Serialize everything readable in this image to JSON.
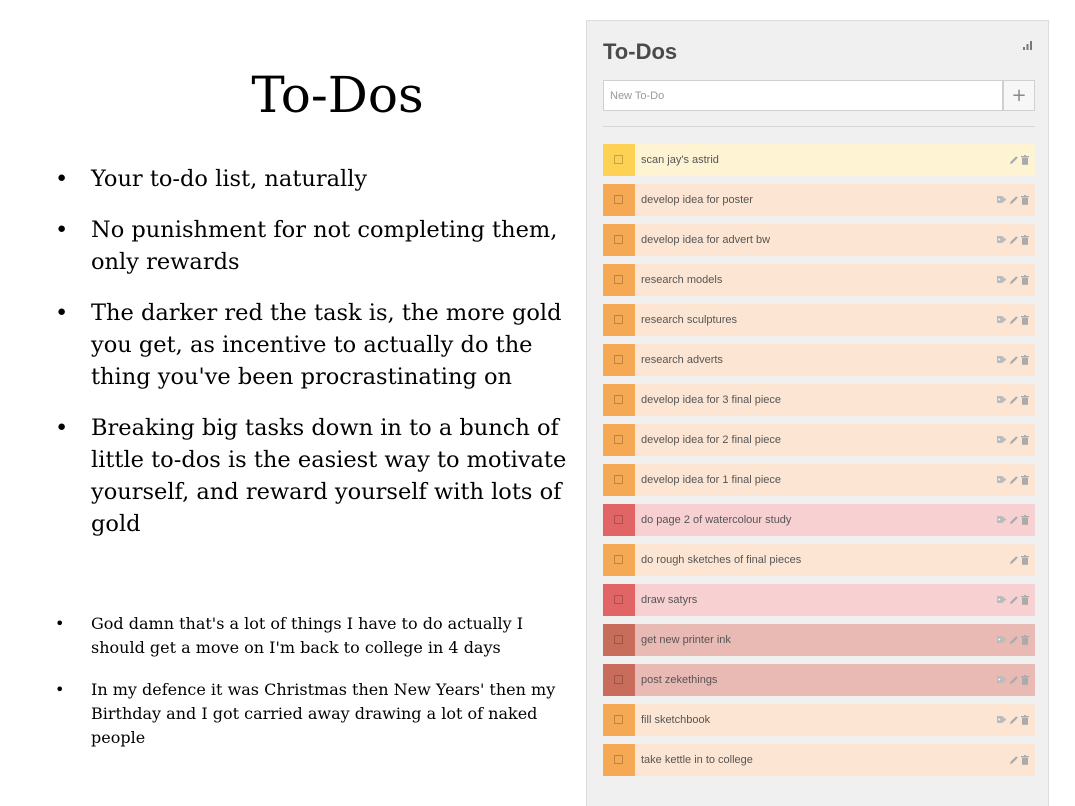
{
  "slide": {
    "title": "To-Dos",
    "bullets": [
      "Your to-do list, naturally",
      "No punishment for not completing them, only rewards",
      "The darker red the task is, the more gold you get, as incentive to actually do the thing you've been procrastinating on",
      "Breaking big tasks down in to a bunch of little to-dos is the easiest way to motivate yourself, and reward yourself with lots of gold"
    ],
    "notes": [
      "God damn that's a lot of things I have to do actually I should get a move on I'm back to college in 4 days",
      "In my defence it was Christmas then New Years' then my Birthday and I  got carried away drawing a lot of naked people"
    ]
  },
  "app": {
    "title": "To-Dos",
    "new_todo_placeholder": "New To-Do",
    "add_button": "+",
    "colors": {
      "yellow": "#fdd153",
      "orange": "#f5a954",
      "red": "#e06564",
      "dark_red": "#c86c5b"
    },
    "tasks": [
      {
        "text": "scan jay's astrid",
        "color": "yellow",
        "tagged": false
      },
      {
        "text": "develop idea for poster",
        "color": "orange",
        "tagged": true
      },
      {
        "text": "develop idea for advert bw",
        "color": "orange",
        "tagged": true
      },
      {
        "text": "research models",
        "color": "orange",
        "tagged": true
      },
      {
        "text": "research sculptures",
        "color": "orange",
        "tagged": true
      },
      {
        "text": "research adverts",
        "color": "orange",
        "tagged": true
      },
      {
        "text": "develop idea for 3 final piece",
        "color": "orange",
        "tagged": true
      },
      {
        "text": "develop idea for 2 final piece",
        "color": "orange",
        "tagged": true
      },
      {
        "text": "develop idea for 1 final piece",
        "color": "orange",
        "tagged": true
      },
      {
        "text": "do page 2 of watercolour study",
        "color": "red",
        "tagged": true
      },
      {
        "text": "do rough sketches of final pieces",
        "color": "orange",
        "tagged": false
      },
      {
        "text": "draw satyrs",
        "color": "red",
        "tagged": true
      },
      {
        "text": "get new printer ink",
        "color": "darkred",
        "tagged": true
      },
      {
        "text": "post zekethings",
        "color": "darkred",
        "tagged": true
      },
      {
        "text": "fill sketchbook",
        "color": "orange",
        "tagged": true
      },
      {
        "text": "take kettle in to college",
        "color": "orange",
        "tagged": false
      }
    ]
  }
}
